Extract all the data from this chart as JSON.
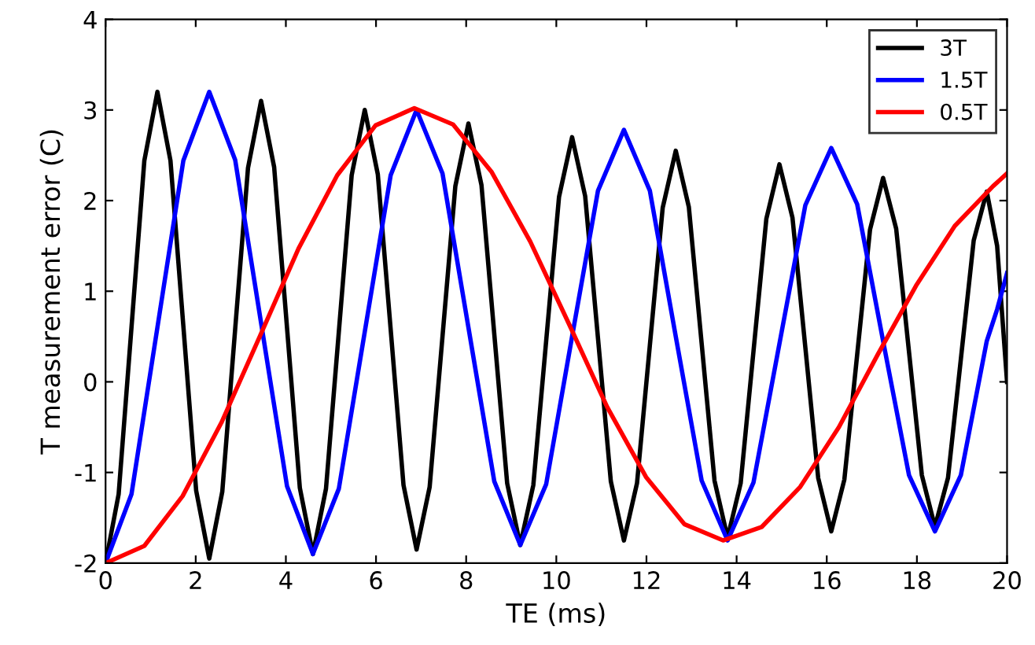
{
  "chart_data": {
    "type": "line",
    "xlabel": "TE (ms)",
    "ylabel": "T measurement error (C)",
    "xlim": [
      0,
      20
    ],
    "ylim": [
      -2,
      4
    ],
    "xticks": [
      0,
      2,
      4,
      6,
      8,
      10,
      12,
      14,
      16,
      18,
      20
    ],
    "yticks": [
      -2,
      -1,
      0,
      1,
      2,
      3,
      4
    ],
    "legend": "top right",
    "grid": false,
    "marker": "none",
    "line_style": "solid",
    "series": [
      {
        "name": "3T",
        "color": "#000000",
        "x": [
          0,
          0.29,
          0.575,
          0.86,
          1.15,
          1.44,
          1.725,
          2.01,
          2.3,
          2.59,
          2.875,
          3.16,
          3.45,
          3.74,
          4.025,
          4.31,
          4.6,
          4.89,
          5.175,
          5.46,
          5.75,
          6.04,
          6.325,
          6.61,
          6.9,
          7.19,
          7.475,
          7.76,
          8.05,
          8.34,
          8.625,
          8.91,
          9.2,
          9.49,
          9.775,
          10.06,
          10.35,
          10.64,
          10.925,
          11.21,
          11.5,
          11.79,
          12.075,
          12.36,
          12.65,
          12.94,
          13.225,
          13.51,
          13.8,
          14.09,
          14.375,
          14.66,
          14.95,
          15.24,
          15.525,
          15.81,
          16.1,
          16.39,
          16.675,
          16.96,
          17.25,
          17.54,
          17.825,
          18.11,
          18.4,
          18.69,
          18.975,
          19.26,
          19.55,
          19.78,
          20
        ],
        "values": [
          -2.0,
          -1.24,
          0.6,
          2.44,
          3.2,
          2.44,
          0.62,
          -1.2,
          -1.95,
          -1.21,
          0.58,
          2.36,
          3.1,
          2.37,
          0.6,
          -1.17,
          -1.9,
          -1.18,
          0.55,
          2.28,
          3.0,
          2.29,
          0.58,
          -1.14,
          -1.85,
          -1.16,
          0.5,
          2.16,
          2.85,
          2.17,
          0.52,
          -1.12,
          -1.8,
          -1.14,
          0.45,
          2.04,
          2.7,
          2.05,
          0.48,
          -1.1,
          -1.75,
          -1.12,
          0.4,
          1.92,
          2.55,
          1.93,
          0.42,
          -1.09,
          -1.72,
          -1.12,
          0.34,
          1.8,
          2.4,
          1.81,
          0.38,
          -1.06,
          -1.65,
          -1.08,
          0.3,
          1.68,
          2.25,
          1.69,
          0.33,
          -1.03,
          -1.6,
          -1.06,
          0.25,
          1.56,
          2.1,
          1.5,
          0.0
        ]
      },
      {
        "name": "1.5T",
        "color": "#0000ff",
        "x": [
          0,
          0.575,
          1.15,
          1.725,
          2.3,
          2.875,
          3.45,
          4.025,
          4.6,
          5.175,
          5.75,
          6.325,
          6.9,
          7.475,
          8.05,
          8.625,
          9.2,
          9.775,
          10.35,
          10.925,
          11.5,
          12.075,
          12.65,
          13.225,
          13.8,
          14.375,
          14.95,
          15.525,
          16.1,
          16.675,
          17.25,
          17.825,
          18.4,
          18.975,
          19.55,
          19.78,
          20
        ],
        "values": [
          -2.0,
          -1.24,
          0.6,
          2.44,
          3.2,
          2.45,
          0.65,
          -1.15,
          -1.9,
          -1.18,
          0.55,
          2.28,
          3.0,
          2.3,
          0.6,
          -1.1,
          -1.8,
          -1.13,
          0.5,
          2.11,
          2.78,
          2.11,
          0.5,
          -1.09,
          -1.75,
          -1.11,
          0.42,
          1.95,
          2.58,
          1.96,
          0.45,
          -1.03,
          -1.65,
          -1.03,
          0.45,
          0.8,
          1.2
        ]
      },
      {
        "name": "0.5T",
        "color": "#ff0000",
        "x": [
          0,
          0.86,
          1.71,
          2.57,
          3.43,
          4.28,
          5.14,
          5.99,
          6.85,
          7.71,
          8.56,
          9.42,
          10.28,
          11.13,
          11.99,
          12.84,
          13.7,
          14.56,
          15.41,
          16.27,
          17.13,
          17.98,
          18.84,
          19.69,
          20
        ],
        "values": [
          -2.0,
          -1.81,
          -1.26,
          -0.45,
          0.51,
          1.47,
          2.28,
          2.83,
          3.02,
          2.84,
          2.32,
          1.55,
          0.64,
          -0.28,
          -1.05,
          -1.57,
          -1.75,
          -1.6,
          -1.16,
          -0.5,
          0.3,
          1.06,
          1.72,
          2.16,
          2.3
        ]
      }
    ]
  }
}
